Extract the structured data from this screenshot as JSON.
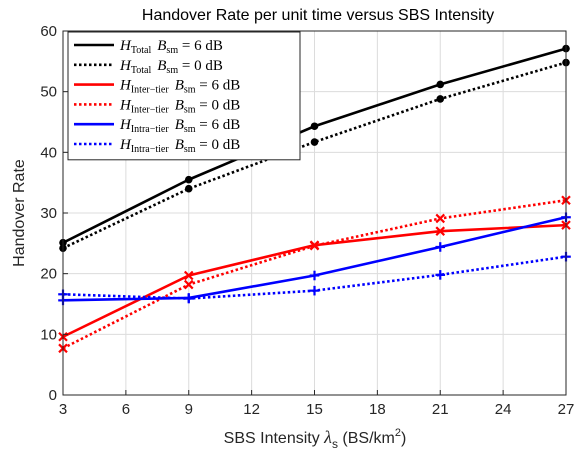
{
  "chart_data": {
    "type": "line",
    "title": "Handover Rate per unit time versus SBS Intensity",
    "xlabel": {
      "main": "SBS Intensity ",
      "lambda": "λ",
      "lambda_sub": "s",
      "unit_open": " (BS/km",
      "unit_sup": "2",
      "unit_close": ")"
    },
    "ylabel": "Handover Rate",
    "xlim": [
      3,
      27
    ],
    "ylim": [
      0,
      60
    ],
    "xticks": [
      3,
      6,
      9,
      12,
      15,
      18,
      21,
      24,
      27
    ],
    "yticks": [
      0,
      10,
      20,
      30,
      40,
      50,
      60
    ],
    "grid": true,
    "legend_position": "top-left",
    "series": [
      {
        "name": "H_Total B_sm = 6 dB",
        "h_sub": "Total",
        "db": "6",
        "color": "#000000",
        "dash": "solid",
        "marker": "dot",
        "x": [
          3,
          9,
          15,
          21,
          27
        ],
        "y": [
          25.1,
          35.5,
          44.3,
          51.2,
          57.1
        ]
      },
      {
        "name": "H_Total B_sm = 0 dB",
        "h_sub": "Total",
        "db": "0",
        "color": "#000000",
        "dash": "dotted",
        "marker": "dot",
        "x": [
          3,
          9,
          15,
          21,
          27
        ],
        "y": [
          24.2,
          34.0,
          41.7,
          48.8,
          54.8
        ]
      },
      {
        "name": "H_Inter-tier B_sm = 6 dB",
        "h_sub": "Inter−tier",
        "db": "6",
        "color": "#ff0000",
        "dash": "solid",
        "marker": "x",
        "x": [
          3,
          9,
          15,
          21,
          27
        ],
        "y": [
          9.6,
          19.7,
          24.7,
          27.0,
          28.0
        ]
      },
      {
        "name": "H_Inter-tier B_sm = 0 dB",
        "h_sub": "Inter−tier",
        "db": "0",
        "color": "#ff0000",
        "dash": "dotted",
        "marker": "x",
        "x": [
          3,
          9,
          15,
          21,
          27
        ],
        "y": [
          7.7,
          18.2,
          24.6,
          29.1,
          32.1
        ]
      },
      {
        "name": "H_Intra-tier B_sm = 6 dB",
        "h_sub": "Intra−tier",
        "db": "6",
        "color": "#0000ff",
        "dash": "solid",
        "marker": "plus",
        "x": [
          3,
          9,
          15,
          21,
          27
        ],
        "y": [
          15.6,
          16.0,
          19.7,
          24.4,
          29.3
        ]
      },
      {
        "name": "H_Intra-tier B_sm = 0 dB",
        "h_sub": "Intra−tier",
        "db": "0",
        "color": "#0000ff",
        "dash": "dotted",
        "marker": "plus",
        "x": [
          3,
          9,
          15,
          21,
          27
        ],
        "y": [
          16.6,
          15.9,
          17.2,
          19.8,
          22.8
        ]
      }
    ]
  }
}
